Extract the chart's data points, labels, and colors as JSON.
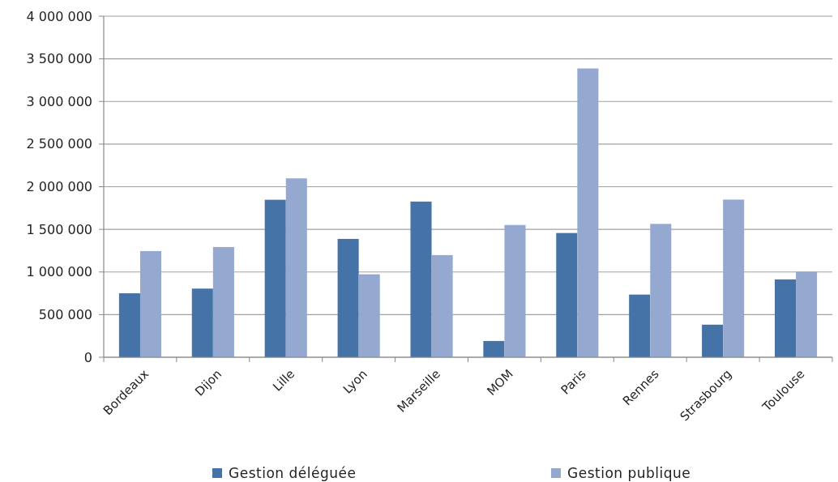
{
  "chart_data": {
    "type": "bar",
    "categories": [
      "Bordeaux",
      "Dijon",
      "Lille",
      "Lyon",
      "Marseille",
      "MOM",
      "Paris",
      "Rennes",
      "Strasbourg",
      "Toulouse"
    ],
    "series": [
      {
        "name": "Gestion déléguée",
        "color": "#4572a7",
        "values": [
          750000,
          805000,
          1847000,
          1388000,
          1826000,
          191000,
          1457000,
          735000,
          382000,
          913000
        ]
      },
      {
        "name": "Gestion publique",
        "color": "#95a9d0",
        "values": [
          1245000,
          1293000,
          2098000,
          973000,
          1198000,
          1551000,
          3387000,
          1564000,
          1849000,
          1004000
        ]
      }
    ],
    "ylim": [
      0,
      4000000
    ],
    "yticks": [
      {
        "value": 0,
        "label": "0"
      },
      {
        "value": 500000,
        "label": "500 000"
      },
      {
        "value": 1000000,
        "label": "1 000 000"
      },
      {
        "value": 1500000,
        "label": "1 500 000"
      },
      {
        "value": 2000000,
        "label": "2 000 000"
      },
      {
        "value": 2500000,
        "label": "2 500 000"
      },
      {
        "value": 3000000,
        "label": "3 000 000"
      },
      {
        "value": 3500000,
        "label": "3 500 000"
      },
      {
        "value": 4000000,
        "label": "4 000 000"
      }
    ],
    "grid": "y",
    "legend": "bottom"
  }
}
